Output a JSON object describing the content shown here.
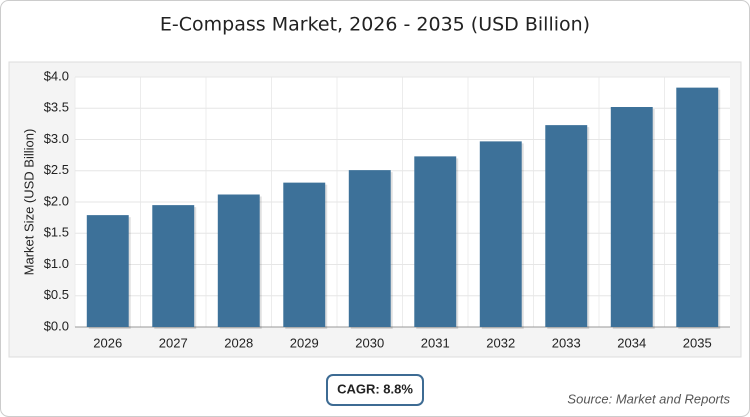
{
  "chart_data": {
    "type": "bar",
    "title": "E-Compass Market, 2026 - 2035 (USD Billion)",
    "y_label": "Market Size (USD Billion)",
    "categories": [
      "2026",
      "2027",
      "2028",
      "2029",
      "2030",
      "2031",
      "2032",
      "2033",
      "2034",
      "2035"
    ],
    "values": [
      1.79,
      1.95,
      2.12,
      2.31,
      2.51,
      2.73,
      2.97,
      3.23,
      3.52,
      3.83
    ],
    "color": "#3d7199",
    "ylim": [
      0,
      4
    ],
    "yticks": [
      {
        "value": 0,
        "label": "$0.0"
      },
      {
        "value": 0.5,
        "label": "$0.5"
      },
      {
        "value": 1,
        "label": "$1.0"
      },
      {
        "value": 1.5,
        "label": "$1.5"
      },
      {
        "value": 2,
        "label": "$2.0"
      },
      {
        "value": 2.5,
        "label": "$2.5"
      },
      {
        "value": 3,
        "label": "$3.0"
      },
      {
        "value": 3.5,
        "label": "$3.5"
      },
      {
        "value": 4,
        "label": "$4.0"
      }
    ],
    "grid": true,
    "annotation": "CAGR: 8.8%",
    "source": "Source: Market and Reports"
  }
}
